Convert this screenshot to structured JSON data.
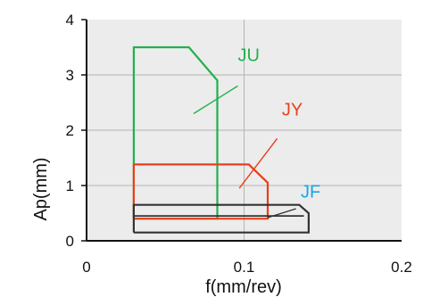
{
  "chart_data": {
    "type": "line",
    "xlabel": "f(mm/rev)",
    "ylabel": "Ap(mm)",
    "xlim": [
      0,
      0.2
    ],
    "ylim": [
      0,
      4
    ],
    "x_ticks": [
      {
        "value": 0,
        "label": "0"
      },
      {
        "value": 0.1,
        "label": "0.1"
      },
      {
        "value": 0.2,
        "label": "0.2"
      }
    ],
    "y_ticks": [
      {
        "value": 0,
        "label": "0"
      },
      {
        "value": 1,
        "label": "1"
      },
      {
        "value": 2,
        "label": "2"
      },
      {
        "value": 3,
        "label": "3"
      },
      {
        "value": 4,
        "label": "4"
      }
    ],
    "grid": true,
    "series": [
      {
        "name": "JU",
        "color": "#22b14c",
        "points": [
          [
            0.03,
            0.4
          ],
          [
            0.03,
            3.5
          ],
          [
            0.065,
            3.5
          ],
          [
            0.083,
            2.9
          ],
          [
            0.083,
            0.4
          ],
          [
            0.03,
            0.4
          ]
        ],
        "label_at": [
          0.096,
          3.25
        ],
        "leader": [
          [
            0.068,
            2.3
          ],
          [
            0.096,
            2.8
          ]
        ]
      },
      {
        "name": "JY",
        "color": "#e8401c",
        "points": [
          [
            0.03,
            0.4
          ],
          [
            0.03,
            1.38
          ],
          [
            0.103,
            1.38
          ],
          [
            0.115,
            1.05
          ],
          [
            0.115,
            0.4
          ],
          [
            0.03,
            0.4
          ]
        ],
        "label_at": [
          0.124,
          2.27
        ],
        "leader": [
          [
            0.097,
            0.95
          ],
          [
            0.121,
            1.85
          ]
        ]
      },
      {
        "name": "JF",
        "color": "#1aa4e0",
        "line_color": "#333333",
        "points": [
          [
            0.03,
            0.15
          ],
          [
            0.03,
            0.65
          ],
          [
            0.135,
            0.65
          ],
          [
            0.141,
            0.5
          ],
          [
            0.141,
            0.15
          ],
          [
            0.03,
            0.15
          ]
        ],
        "inner": [
          [
            0.03,
            0.45
          ],
          [
            0.138,
            0.45
          ]
        ],
        "label_at": [
          0.136,
          0.78
        ],
        "leader": [
          [
            0.115,
            0.42
          ],
          [
            0.133,
            0.58
          ]
        ]
      }
    ]
  }
}
